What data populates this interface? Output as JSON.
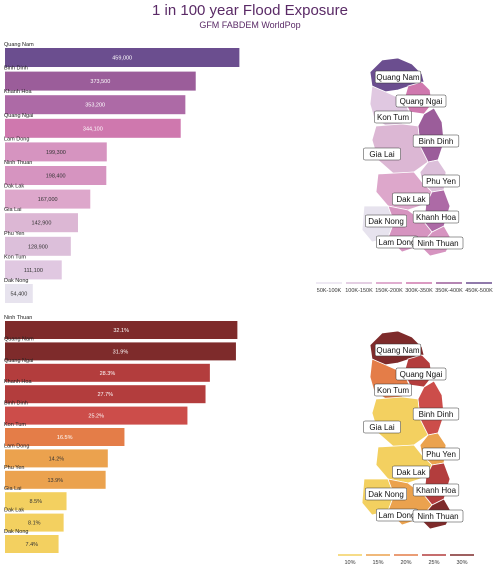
{
  "header": {
    "title": "1 in 100 year Flood Exposure",
    "subtitle": "GFM FABDEM WorldPop"
  },
  "chart_data": [
    {
      "type": "bar",
      "orientation": "horizontal",
      "metric": "population exposed",
      "categories": [
        "Quang Nam",
        "Binh Dinh",
        "Khanh Hoa",
        "Quang Ngai",
        "Lam Dong",
        "Ninh Thuan",
        "Dak Lak",
        "Gia Lai",
        "Phu Yen",
        "Kon Tum",
        "Dak Nong"
      ],
      "values": [
        459000,
        373500,
        353200,
        344100,
        199300,
        198400,
        167000,
        142900,
        128900,
        111100,
        54400
      ],
      "value_labels": [
        "459,000",
        "373,500",
        "353,200",
        "344,100",
        "199,300",
        "198,400",
        "167,000",
        "142,900",
        "128,900",
        "111,100",
        "54,400"
      ],
      "colors": [
        "#6b4e8f",
        "#9b5d9a",
        "#ad6aa6",
        "#cf78ae",
        "#d694c0",
        "#d694c0",
        "#dda7cb",
        "#dcb7d4",
        "#dcbfda",
        "#e0c8e1",
        "#e7e3ee"
      ],
      "xlim": [
        0,
        470000
      ]
    },
    {
      "type": "map",
      "regions": [
        "Quang Nam",
        "Quang Ngai",
        "Kon Tum",
        "Binh Dinh",
        "Gia Lai",
        "Phu Yen",
        "Dak Lak",
        "Dak Nong",
        "Khanh Hoa",
        "Lam Dong",
        "Ninh Thuan"
      ],
      "legend_labels": [
        "50K-100K",
        "100K-150K",
        "150K-200K",
        "300K-350K",
        "350K-400K",
        "450K-500K"
      ],
      "legend_colors": [
        "#e8e2ef",
        "#dcbfda",
        "#d694c0",
        "#cf78ae",
        "#9b5d9a",
        "#6b4e8f"
      ]
    },
    {
      "type": "bar",
      "orientation": "horizontal",
      "metric": "share of population exposed (%)",
      "categories": [
        "Ninh Thuan",
        "Quang Nam",
        "Quang Ngai",
        "Khanh Hoa",
        "Binh Dinh",
        "Kon Tum",
        "Lam Dong",
        "Phu Yen",
        "Gia Lai",
        "Dak Lak",
        "Dak Nong"
      ],
      "values": [
        32.1,
        31.9,
        28.3,
        27.7,
        25.2,
        16.5,
        14.2,
        13.9,
        8.5,
        8.1,
        7.4
      ],
      "value_labels": [
        "32.1%",
        "31.9%",
        "28.3%",
        "27.7%",
        "25.2%",
        "16.5%",
        "14.2%",
        "13.9%",
        "8.5%",
        "8.1%",
        "7.4%"
      ],
      "colors": [
        "#7e2b2b",
        "#7e2b2b",
        "#b33d3d",
        "#b33d3d",
        "#cc4d4a",
        "#e47d48",
        "#eba24e",
        "#eba24e",
        "#f3d060",
        "#f3d060",
        "#f3d060"
      ],
      "xlim": [
        0,
        32.6
      ]
    },
    {
      "type": "map",
      "regions": [
        "Quang Nam",
        "Quang Ngai",
        "Kon Tum",
        "Binh Dinh",
        "Gia Lai",
        "Phu Yen",
        "Dak Lak",
        "Dak Nong",
        "Khanh Hoa",
        "Lam Dong",
        "Ninh Thuan"
      ],
      "legend_labels": [
        "10%",
        "15%",
        "20%",
        "25%",
        "30%"
      ],
      "legend_colors": [
        "#f3d060",
        "#eba24e",
        "#e47d48",
        "#b33d3d",
        "#7e2b2b"
      ]
    }
  ]
}
